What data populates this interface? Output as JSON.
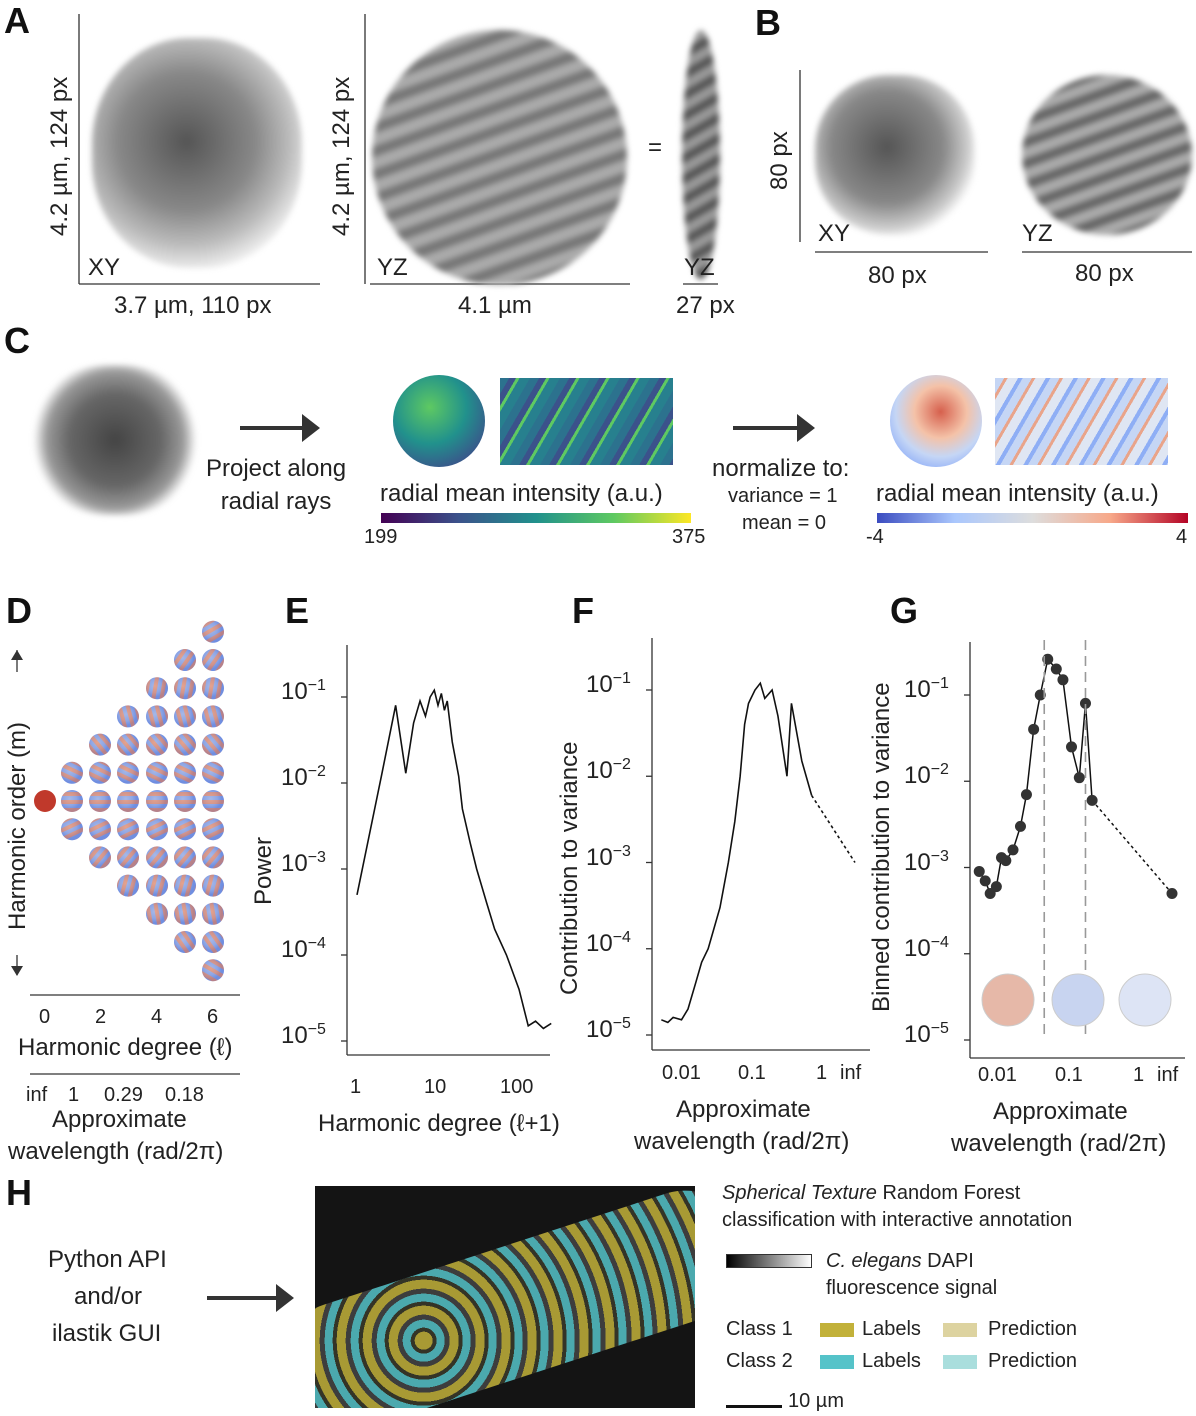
{
  "panels": {
    "a": "A",
    "b": "B",
    "c": "C",
    "d": "D",
    "e": "E",
    "f": "F",
    "g": "G",
    "h": "H"
  },
  "a": {
    "xy": "XY",
    "yz1": "YZ",
    "yz2": "YZ",
    "eq": "=",
    "ylab1": "4.2 µm, 124 px",
    "ylab2": "4.2 µm, 124 px",
    "xlab1": "3.7 µm, 110 px",
    "xlab2": "4.1 µm",
    "xlab3": "27 px"
  },
  "b": {
    "xy": "XY",
    "yz": "YZ",
    "ylab": "80 px",
    "xlab1": "80 px",
    "xlab2": "80 px"
  },
  "c": {
    "project": "Project along\nradial rays",
    "cb1_label": "radial mean intensity (a.u.)",
    "cb1_min": "199",
    "cb1_max": "375",
    "normalize": "normalize to:",
    "var": "variance = 1",
    "mean": "mean = 0",
    "cb2_label": "radial mean intensity (a.u.)",
    "cb2_min": "-4",
    "cb2_max": "4"
  },
  "d": {
    "ylab": "Harmonic order (m)",
    "xlab": "Harmonic degree (ℓ)",
    "ticks": [
      "0",
      "2",
      "4",
      "6"
    ],
    "wl_ticks": [
      "inf",
      "1",
      "0.29",
      "0.18"
    ],
    "wl_lab1": "Approximate",
    "wl_lab2": "wavelength (rad/2π)"
  },
  "h": {
    "left1": "Python API",
    "left2": "and/or",
    "left3": "ilastik GUI",
    "title1": "Spherical Texture",
    "title2": " Random Forest",
    "title3": "classification with interactive annotation",
    "dapi1": "C. elegans",
    "dapi2": " DAPI",
    "dapi3": "fluorescence signal",
    "class1": "Class 1",
    "class2": "Class 2",
    "labels": "Labels",
    "prediction": "Prediction",
    "scale": "10 µm"
  },
  "colors": {
    "class1_labels": "#c2b13a",
    "class1_pred": "#ddd3a0",
    "class2_labels": "#55c3c9",
    "class2_pred": "#a9dedd",
    "viridis": [
      "#440154",
      "#3b528b",
      "#21918c",
      "#5ec962",
      "#fde725"
    ],
    "coolwarm": [
      "#3b4cc0",
      "#aac7fd",
      "#dddddd",
      "#f7a889",
      "#b40426"
    ]
  },
  "chart_data": [
    {
      "type": "line",
      "panel": "E",
      "xlabel": "Harmonic degree (ℓ+1)",
      "ylabel": "Power",
      "xscale": "log",
      "yscale": "log",
      "xlim": [
        0.9,
        260
      ],
      "ylim": [
        1e-05,
        0.2
      ],
      "xticks": [
        "1",
        "10",
        "100"
      ],
      "yticks": [
        "10^-1",
        "10^-2",
        "10^-3",
        "10^-4",
        "10^-5"
      ],
      "x": [
        1,
        2,
        3,
        4,
        5,
        6,
        7,
        8,
        9,
        10,
        11,
        12,
        13,
        15,
        18,
        20,
        25,
        30,
        40,
        50,
        70,
        100,
        130,
        160,
        200,
        250
      ],
      "y": [
        0.0005,
        0.012,
        0.08,
        0.013,
        0.05,
        0.09,
        0.06,
        0.1,
        0.12,
        0.08,
        0.11,
        0.07,
        0.09,
        0.03,
        0.012,
        0.005,
        0.002,
        0.001,
        0.0004,
        0.0002,
        0.0001,
        4e-05,
        1.5e-05,
        1.7e-05,
        1.4e-05,
        1.6e-05
      ]
    },
    {
      "type": "line",
      "panel": "F",
      "xlabel": "Approximate wavelength (rad/2π)",
      "ylabel": "Contribution to variance",
      "xscale": "log",
      "yscale": "log",
      "ylim": [
        1e-05,
        0.2
      ],
      "xticks": [
        "0.01",
        "0.1",
        "1",
        "inf"
      ],
      "yticks": [
        "10^-1",
        "10^-2",
        "10^-3",
        "10^-4",
        "10^-5"
      ],
      "x": [
        0.004,
        0.005,
        0.006,
        0.008,
        0.01,
        0.013,
        0.016,
        0.02,
        0.03,
        0.04,
        0.05,
        0.06,
        0.07,
        0.08,
        0.1,
        0.12,
        0.14,
        0.18,
        0.22,
        0.3,
        0.35,
        0.5,
        0.7
      ],
      "y": [
        1.5e-05,
        1.4e-05,
        1.6e-05,
        1.5e-05,
        2e-05,
        4e-05,
        7e-05,
        0.0001,
        0.0003,
        0.001,
        0.003,
        0.01,
        0.04,
        0.07,
        0.1,
        0.12,
        0.08,
        0.1,
        0.05,
        0.01,
        0.07,
        0.015,
        0.006
      ],
      "dashed_to_inf": 0.001
    },
    {
      "type": "scatter",
      "panel": "G",
      "xlabel": "Approximate wavelength (rad/2π)",
      "ylabel": "Binned contribution to variance",
      "xscale": "log",
      "yscale": "log",
      "ylim": [
        1e-05,
        0.2
      ],
      "xticks": [
        "0.01",
        "0.1",
        "1",
        "inf"
      ],
      "yticks": [
        "10^-1",
        "10^-2",
        "10^-3",
        "10^-4",
        "10^-5"
      ],
      "vlines": [
        0.04,
        0.16
      ],
      "x": [
        0.0045,
        0.0055,
        0.0065,
        0.008,
        0.0095,
        0.011,
        0.014,
        0.018,
        0.022,
        0.028,
        0.035,
        0.045,
        0.06,
        0.075,
        0.1,
        0.13,
        0.16,
        0.2,
        0.25,
        0.32,
        0.45,
        "inf"
      ],
      "y": [
        0.0009,
        0.0007,
        0.0005,
        0.0006,
        0.0013,
        0.0012,
        0.0016,
        0.003,
        0.007,
        0.04,
        0.1,
        0.26,
        0.2,
        0.15,
        0.025,
        0.011,
        0.08,
        0.006,
        null,
        null,
        null,
        0.0005
      ]
    }
  ]
}
